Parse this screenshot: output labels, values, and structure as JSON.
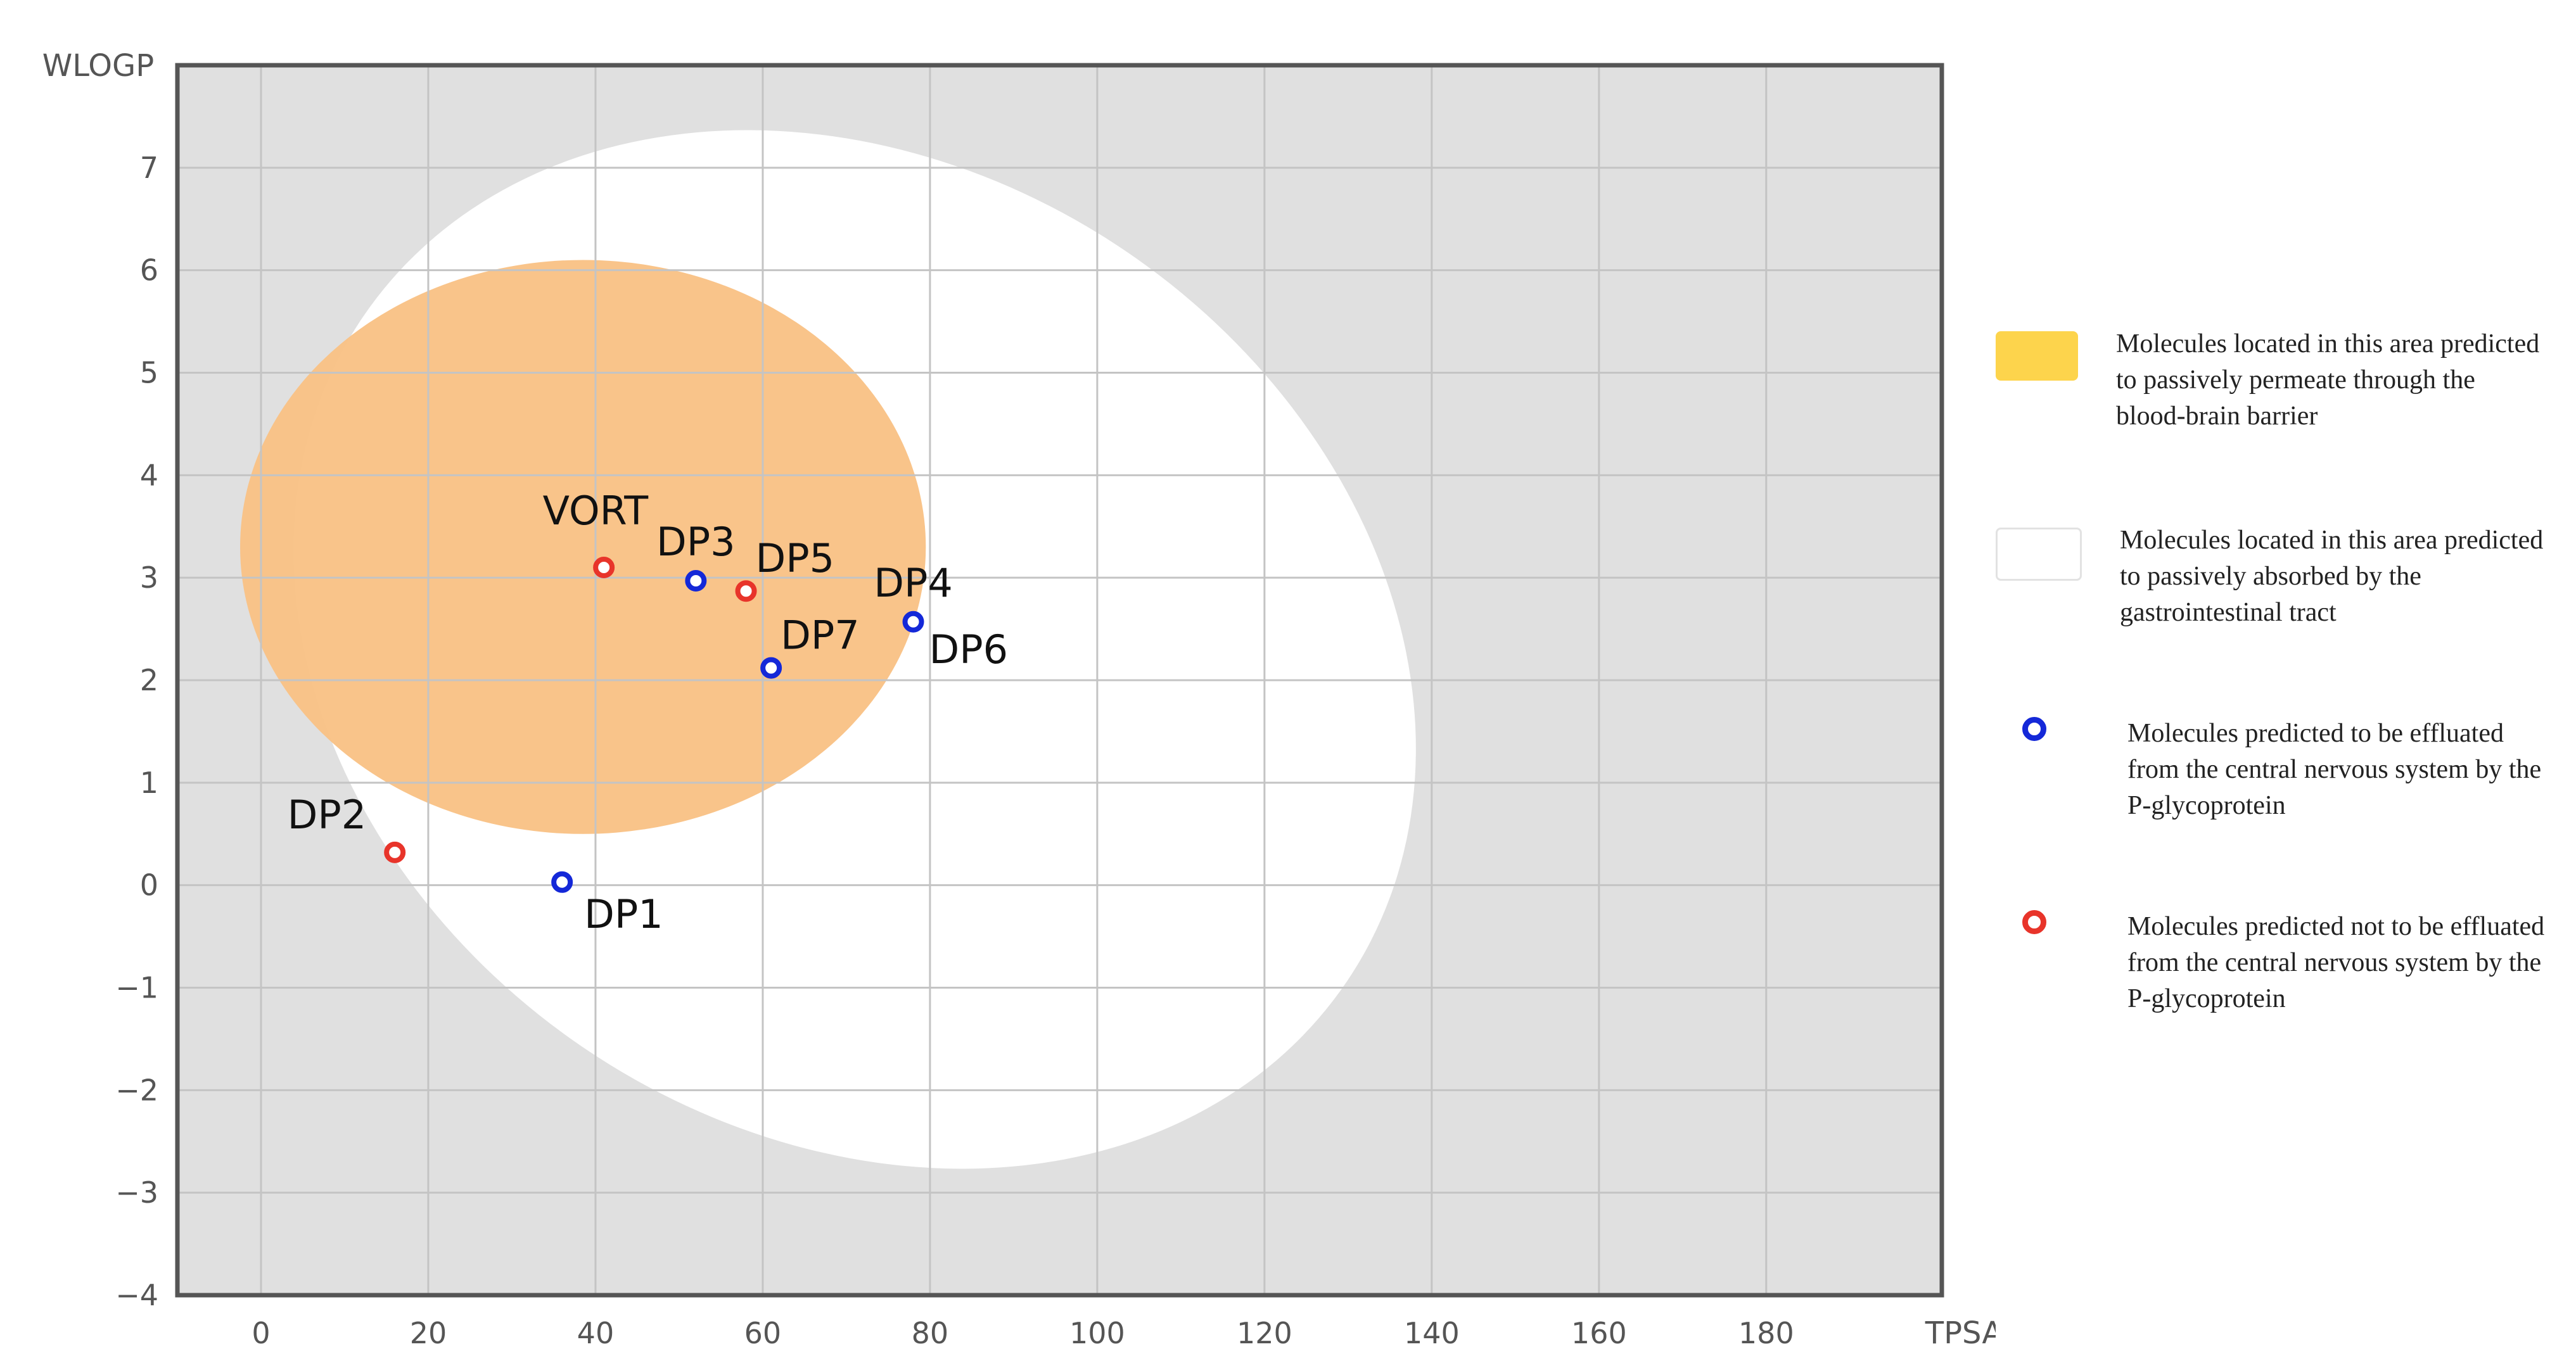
{
  "chart_data": {
    "type": "scatter",
    "title": "",
    "xlabel": "TPSA",
    "ylabel": "WLOGP",
    "xlim": [
      -10,
      201
    ],
    "ylim": [
      -4,
      8
    ],
    "xticks": [
      0,
      20,
      40,
      60,
      80,
      100,
      120,
      140,
      160,
      180
    ],
    "yticks": [
      -4,
      -3,
      -2,
      -1,
      0,
      1,
      2,
      3,
      4,
      5,
      6,
      7
    ],
    "grid": true,
    "background_color": "#e0e0e0",
    "regions": [
      {
        "name": "white",
        "type": "ellipse",
        "cx": 71,
        "cy": 2.3,
        "rx": 71,
        "ry": 4.7,
        "rotation_deg": 34,
        "color": "#ffffff"
      },
      {
        "name": "yolk",
        "type": "ellipse",
        "cx": 38.5,
        "cy": 3.3,
        "rx": 41,
        "ry": 2.8,
        "rotation_deg": 0,
        "color": "#f9c184"
      }
    ],
    "points": [
      {
        "label": "VORT",
        "x": 41,
        "y": 3.1,
        "pgp": "non-substrate",
        "color": "#e8342a",
        "label_pos": "above-left"
      },
      {
        "label": "DP3",
        "x": 52,
        "y": 2.97,
        "pgp": "substrate",
        "color": "#1428d8",
        "label_pos": "above"
      },
      {
        "label": "DP5",
        "x": 58,
        "y": 2.87,
        "pgp": "non-substrate",
        "color": "#e8342a",
        "label_pos": "above-right"
      },
      {
        "label": "DP4",
        "x": 78,
        "y": 2.57,
        "pgp": "substrate",
        "color": "#1428d8",
        "label_pos": "above"
      },
      {
        "label": "DP6",
        "x": 78,
        "y": 2.57,
        "pgp": "substrate",
        "color": "#1428d8",
        "label_pos": "below-right"
      },
      {
        "label": "DP7",
        "x": 61,
        "y": 2.12,
        "pgp": "substrate",
        "color": "#1428d8",
        "label_pos": "above-right"
      },
      {
        "label": "DP2",
        "x": 16,
        "y": 0.32,
        "pgp": "non-substrate",
        "color": "#e8342a",
        "label_pos": "above-left"
      },
      {
        "label": "DP1",
        "x": 36,
        "y": 0.03,
        "pgp": "substrate",
        "color": "#1428d8",
        "label_pos": "below-right"
      }
    ]
  },
  "legend": {
    "items": [
      {
        "name": "yolk",
        "text": "Molecules located in this area predicted to passively permeate through the blood-brain barrier",
        "swatch": "box",
        "color": "#fdd44c"
      },
      {
        "name": "white",
        "text": "Molecules located in this area predicted to passively absorbed by the gastrointestinal tract",
        "swatch": "box",
        "color": "#ffffff"
      },
      {
        "name": "pgp-substrate",
        "text": "Molecules predicted to be effluated from the central nervous system by the P-glycoprotein",
        "swatch": "circle",
        "color": "#1428d8"
      },
      {
        "name": "pgp-non-substrate",
        "text": "Molecules predicted not to be effluated from the central nervous system by the P-glycoprotein",
        "swatch": "circle",
        "color": "#e8342a"
      }
    ]
  }
}
